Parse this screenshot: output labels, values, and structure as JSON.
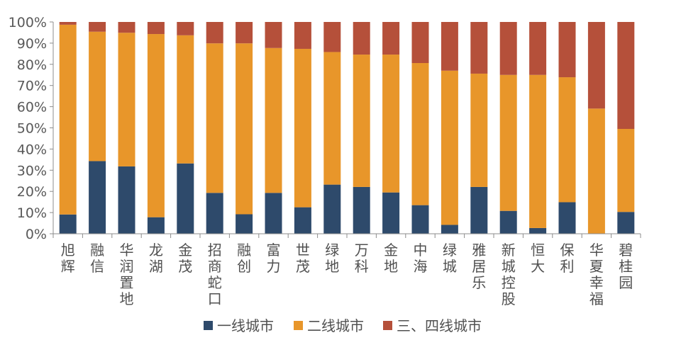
{
  "chart_data": {
    "type": "bar",
    "stacked": true,
    "percent_stacked": true,
    "title": "",
    "xlabel": "",
    "ylabel": "",
    "ylim": [
      0,
      100
    ],
    "yticks": [
      "0%",
      "10%",
      "20%",
      "30%",
      "40%",
      "50%",
      "60%",
      "70%",
      "80%",
      "90%",
      "100%"
    ],
    "grid": false,
    "legend_position": "bottom",
    "categories": [
      "旭辉",
      "融信",
      "华润置地",
      "龙湖",
      "金茂",
      "招商蛇口",
      "融创",
      "富力",
      "世茂",
      "绿地",
      "万科",
      "金地",
      "中海",
      "绿城",
      "雅居乐",
      "新城控股",
      "恒大",
      "保利",
      "华夏幸福",
      "碧桂园"
    ],
    "series": [
      {
        "name": "一线城市",
        "color": "#2E4A6B",
        "values": [
          9.1,
          34.3,
          31.8,
          7.8,
          33.2,
          19.3,
          9.2,
          19.3,
          12.5,
          23.2,
          22.1,
          19.5,
          13.5,
          4.2,
          22.1,
          10.8,
          2.7,
          14.9,
          0.0,
          10.3
        ]
      },
      {
        "name": "二线城市",
        "color": "#E8962A",
        "values": [
          89.6,
          61.1,
          63.1,
          86.5,
          60.5,
          70.6,
          80.7,
          68.4,
          74.8,
          62.6,
          62.5,
          65.1,
          67.1,
          72.8,
          53.5,
          64.2,
          72.3,
          59.0,
          59.1,
          39.2
        ]
      },
      {
        "name": "三、四线城市",
        "color": "#B5503A",
        "values": [
          1.3,
          4.6,
          5.1,
          5.7,
          6.3,
          10.1,
          10.1,
          12.3,
          12.7,
          14.2,
          15.4,
          15.4,
          19.4,
          23.0,
          24.4,
          25.0,
          25.0,
          26.1,
          40.9,
          50.5
        ]
      }
    ]
  }
}
